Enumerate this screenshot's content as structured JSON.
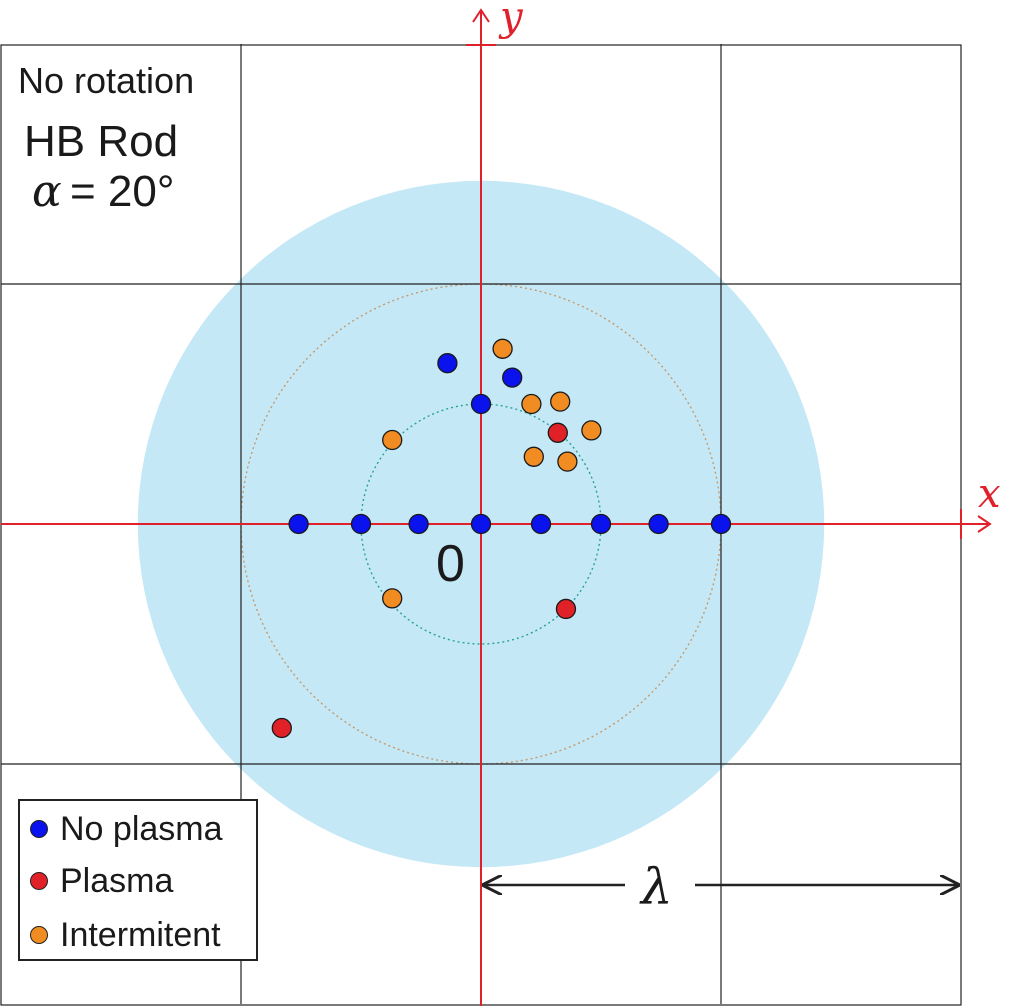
{
  "chart_data": {
    "type": "scatter",
    "annotations": {
      "rotation": "No rotation",
      "rod": "HB Rod",
      "alpha_symbol": "α",
      "alpha_value": "= 20°",
      "origin": "0",
      "lambda": "λ"
    },
    "axes": {
      "xlabel": "x",
      "ylabel": "y",
      "x_range": [
        -1,
        1
      ],
      "y_range": [
        -1,
        1
      ],
      "grid": true,
      "grid_step": 0.5,
      "unit": "λ"
    },
    "regions": [
      {
        "kind": "filled-circle",
        "radius": 0.715,
        "color": "#c5e8f6"
      },
      {
        "kind": "dotted-circle",
        "radius": 0.5,
        "color": "#c49a6c"
      },
      {
        "kind": "dotted-circle",
        "radius": 0.25,
        "color": "#2aa198"
      }
    ],
    "series": [
      {
        "name": "No plasma",
        "color": "#0a12ee",
        "points": [
          [
            -0.38,
            0
          ],
          [
            -0.25,
            0
          ],
          [
            -0.13,
            0
          ],
          [
            0,
            0
          ],
          [
            0.125,
            0
          ],
          [
            0.25,
            0
          ],
          [
            0.37,
            0
          ],
          [
            0.5,
            0
          ],
          [
            0,
            0.25
          ],
          [
            -0.07,
            0.335
          ],
          [
            0.065,
            0.305
          ]
        ]
      },
      {
        "name": "Plasma",
        "color": "#e02228",
        "points": [
          [
            0.16,
            0.19
          ],
          [
            0.177,
            -0.177
          ],
          [
            -0.415,
            -0.425
          ]
        ]
      },
      {
        "name": "Intermitent",
        "color": "#f08c22",
        "points": [
          [
            -0.185,
            0.175
          ],
          [
            -0.185,
            -0.155
          ],
          [
            0.045,
            0.365
          ],
          [
            0.105,
            0.25
          ],
          [
            0.165,
            0.255
          ],
          [
            0.23,
            0.195
          ],
          [
            0.11,
            0.14
          ],
          [
            0.18,
            0.13
          ]
        ]
      }
    ],
    "legend": {
      "position": "bottom-left",
      "entries": [
        "No plasma",
        "Plasma",
        "Intermitent"
      ]
    }
  }
}
